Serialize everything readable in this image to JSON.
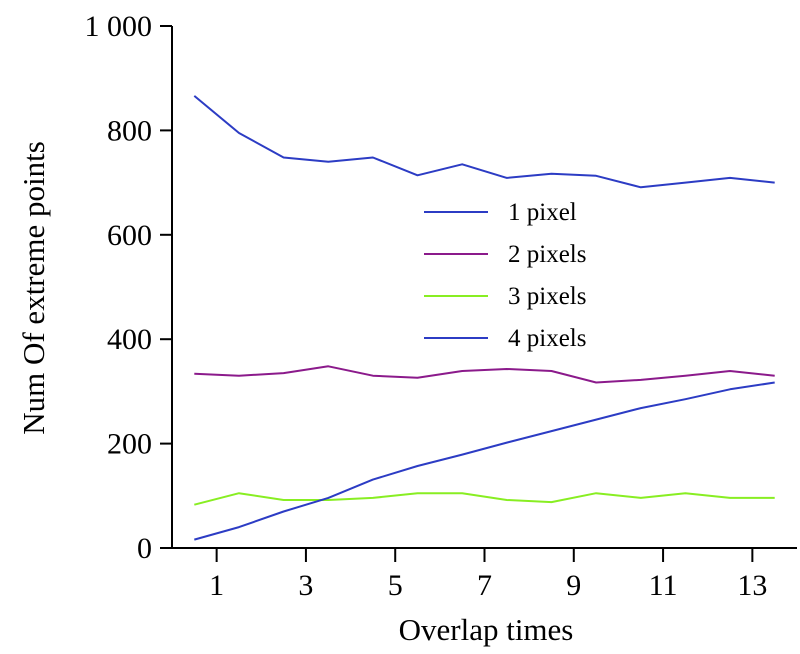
{
  "chart_data": {
    "type": "line",
    "title": "",
    "xlabel": "Overlap times",
    "ylabel": "Num Of  extreme points",
    "x": [
      0.5,
      1.5,
      2.5,
      3.5,
      4.5,
      5.5,
      6.5,
      7.5,
      8.5,
      9.5,
      10.5,
      11.5,
      12.5,
      13.5
    ],
    "xlim": [
      0,
      14
    ],
    "ylim": [
      0,
      1000
    ],
    "xticks": [
      1,
      3,
      5,
      7,
      9,
      11,
      13
    ],
    "xtick_labels": [
      "1",
      "3",
      "5",
      "7",
      "9",
      "11",
      "13"
    ],
    "yticks": [
      0,
      200,
      400,
      600,
      800,
      1000
    ],
    "ytick_labels": [
      "0",
      "200",
      "400",
      "600",
      "800",
      "1 000"
    ],
    "grid": false,
    "legend_position": "center-right",
    "series": [
      {
        "name": "1 pixel",
        "color": "#2c3cc4",
        "values": [
          866,
          795,
          748,
          740,
          748,
          714,
          735,
          709,
          717,
          713,
          691,
          700,
          709,
          700
        ]
      },
      {
        "name": "2 pixels",
        "color": "#8b1a8b",
        "values": [
          334,
          330,
          335,
          348,
          330,
          326,
          339,
          343,
          339,
          317,
          322,
          330,
          339,
          330
        ]
      },
      {
        "name": "3 pixels",
        "color": "#88ee22",
        "values": [
          83,
          105,
          92,
          92,
          96,
          105,
          105,
          92,
          88,
          105,
          96,
          105,
          96,
          96
        ]
      },
      {
        "name": "4 pixels",
        "color": "#2c3cc4",
        "values": [
          16,
          40,
          70,
          96,
          131,
          157,
          179,
          202,
          224,
          246,
          268,
          285,
          304,
          317
        ]
      }
    ]
  }
}
